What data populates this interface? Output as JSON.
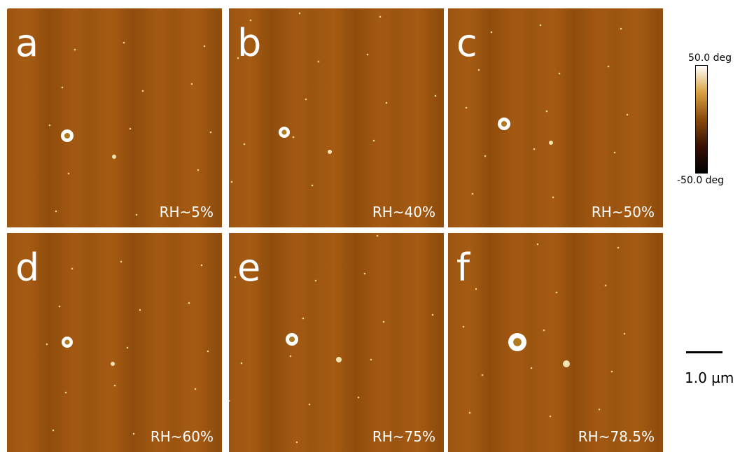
{
  "panels": [
    {
      "letter": "a",
      "label": "RH~5%"
    },
    {
      "letter": "b",
      "label": "RH~40%"
    },
    {
      "letter": "c",
      "label": "RH~50%"
    },
    {
      "letter": "d",
      "label": "RH~60%"
    },
    {
      "letter": "e",
      "label": "RH~75%"
    },
    {
      "letter": "f",
      "label": "RH~78.5%"
    }
  ],
  "colorbar": {
    "max": "50.0 deg",
    "min": "-50.0 deg"
  },
  "scale_bar": "1.0 µm"
}
